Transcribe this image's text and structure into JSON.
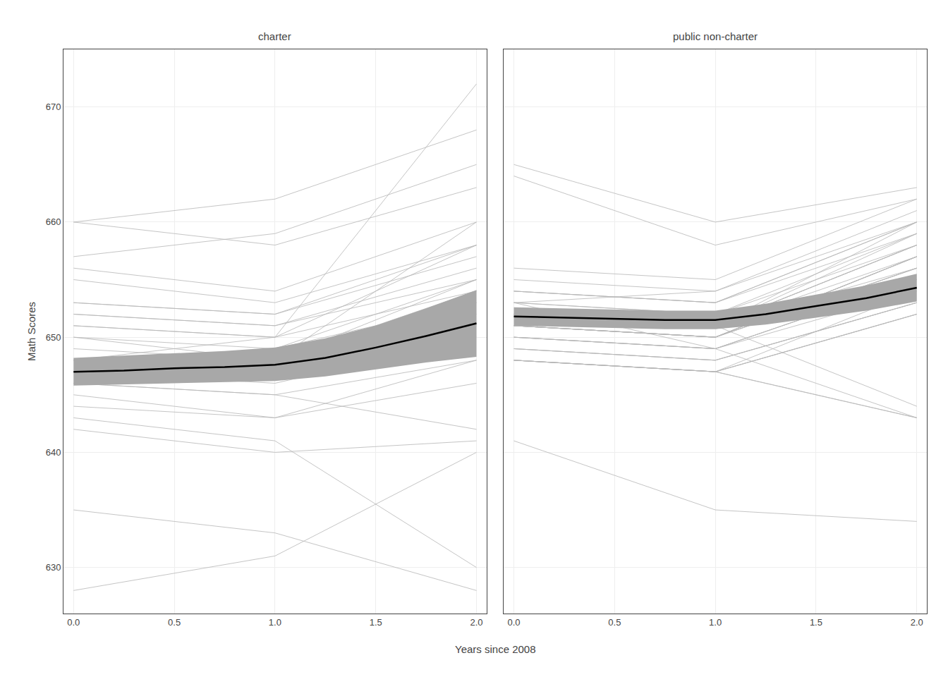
{
  "chart_data": [
    {
      "type": "line",
      "title": "charter",
      "xlabel": "Years since 2008",
      "ylabel": "Math Scores",
      "xlim": [
        -0.05,
        2.05
      ],
      "ylim": [
        626,
        675
      ],
      "xticks": [
        {
          "value": 0,
          "label": "0.0"
        },
        0.5,
        {
          "value": 1,
          "label": "1.0"
        },
        1.5,
        {
          "value": 2,
          "label": "2.0"
        }
      ],
      "yticks": [
        630,
        640,
        650,
        660,
        670
      ],
      "grid": true,
      "x": [
        0,
        1,
        2
      ],
      "series": [
        {
          "color": "#B8B8B8",
          "values": [
            647,
            648,
            655
          ]
        },
        {
          "color": "#B8B8B8",
          "values": [
            656,
            654,
            660
          ]
        },
        {
          "color": "#B8B8B8",
          "values": [
            651,
            650,
            658
          ]
        },
        {
          "color": "#B8B8B8",
          "values": [
            648,
            647,
            651
          ]
        },
        {
          "color": "#B8B8B8",
          "values": [
            650,
            648,
            660
          ]
        },
        {
          "color": "#B8B8B8",
          "values": [
            646,
            645,
            642
          ]
        },
        {
          "color": "#B8B8B8",
          "values": [
            655,
            653,
            658
          ]
        },
        {
          "color": "#B8B8B8",
          "values": [
            652,
            651,
            655
          ]
        },
        {
          "color": "#B8B8B8",
          "values": [
            647,
            646,
            650
          ]
        },
        {
          "color": "#B8B8B8",
          "values": [
            649,
            648,
            654
          ]
        },
        {
          "color": "#B8B8B8",
          "values": [
            644,
            643,
            648
          ]
        },
        {
          "color": "#B8B8B8",
          "values": [
            650,
            649,
            655
          ]
        },
        {
          "color": "#B8B8B8",
          "values": [
            653,
            652,
            657
          ]
        },
        {
          "color": "#B8B8B8",
          "values": [
            648,
            647,
            652
          ]
        },
        {
          "color": "#B8B8B8",
          "values": [
            657,
            659,
            665
          ]
        },
        {
          "color": "#B8B8B8",
          "values": [
            646,
            645,
            648
          ]
        },
        {
          "color": "#B8B8B8",
          "values": [
            660,
            658,
            663
          ]
        },
        {
          "color": "#B8B8B8",
          "values": [
            645,
            643,
            646
          ]
        },
        {
          "color": "#B8B8B8",
          "values": [
            652,
            651,
            656
          ]
        },
        {
          "color": "#B8B8B8",
          "values": [
            648,
            650,
            672
          ]
        },
        {
          "color": "#B8B8B8",
          "values": [
            635,
            633,
            628
          ]
        },
        {
          "color": "#B8B8B8",
          "values": [
            628,
            631,
            640
          ]
        },
        {
          "color": "#B8B8B8",
          "values": [
            642,
            640,
            641
          ]
        },
        {
          "color": "#B8B8B8",
          "values": [
            653,
            652,
            658
          ]
        },
        {
          "color": "#B8B8B8",
          "values": [
            651,
            650,
            654
          ]
        },
        {
          "color": "#B8B8B8",
          "values": [
            648,
            647,
            653
          ]
        },
        {
          "color": "#B8B8B8",
          "values": [
            646,
            647,
            651
          ]
        },
        {
          "color": "#B8B8B8",
          "values": [
            660,
            662,
            668
          ]
        },
        {
          "color": "#B8B8B8",
          "values": [
            647,
            649,
            653
          ]
        },
        {
          "color": "#B8B8B8",
          "values": [
            643,
            641,
            630
          ]
        },
        {
          "type": "band",
          "color": "#A8A8A8",
          "x": [
            0.0,
            0.25,
            0.5,
            0.75,
            1.0,
            1.25,
            1.5,
            1.75,
            2.0
          ],
          "low": [
            645.8,
            645.9,
            646.0,
            646.1,
            646.2,
            646.6,
            647.2,
            647.8,
            648.3
          ],
          "high": [
            648.2,
            648.4,
            648.6,
            648.8,
            649.1,
            649.9,
            651.0,
            652.5,
            654.1
          ]
        },
        {
          "color": "#000000",
          "x": [
            0.0,
            0.25,
            0.5,
            0.75,
            1.0,
            1.25,
            1.5,
            1.75,
            2.0
          ],
          "values": [
            647.0,
            647.1,
            647.3,
            647.4,
            647.6,
            648.2,
            649.1,
            650.1,
            651.2
          ]
        }
      ]
    },
    {
      "type": "line",
      "title": "public non-charter",
      "tick_labels": "x",
      "xlim": [
        -0.05,
        2.05
      ],
      "ylim": [
        626,
        675
      ],
      "xticks": [
        {
          "value": 0,
          "label": "0.0"
        },
        0.5,
        {
          "value": 1,
          "label": "1.0"
        },
        1.5,
        {
          "value": 2,
          "label": "2.0"
        }
      ],
      "yticks": [
        630,
        640,
        650,
        660,
        670
      ],
      "grid": true,
      "x": [
        0,
        1,
        2
      ],
      "series": [
        {
          "color": "#B8B8B8",
          "values": [
            652,
            651,
            658
          ]
        },
        {
          "color": "#B8B8B8",
          "values": [
            653,
            654,
            660
          ]
        },
        {
          "color": "#B8B8B8",
          "values": [
            651,
            650,
            656
          ]
        },
        {
          "color": "#B8B8B8",
          "values": [
            649,
            648,
            653
          ]
        },
        {
          "color": "#B8B8B8",
          "values": [
            655,
            654,
            661
          ]
        },
        {
          "color": "#B8B8B8",
          "values": [
            650,
            649,
            655
          ]
        },
        {
          "color": "#B8B8B8",
          "values": [
            648,
            647,
            652
          ]
        },
        {
          "color": "#B8B8B8",
          "values": [
            653,
            652,
            658
          ]
        },
        {
          "color": "#B8B8B8",
          "values": [
            651,
            650,
            657
          ]
        },
        {
          "color": "#B8B8B8",
          "values": [
            652,
            651,
            656
          ]
        },
        {
          "color": "#B8B8B8",
          "values": [
            654,
            653,
            659
          ]
        },
        {
          "color": "#B8B8B8",
          "values": [
            650,
            649,
            654
          ]
        },
        {
          "color": "#B8B8B8",
          "values": [
            648,
            647,
            652
          ]
        },
        {
          "color": "#B8B8B8",
          "values": [
            656,
            655,
            662
          ]
        },
        {
          "color": "#B8B8B8",
          "values": [
            651,
            650,
            657
          ]
        },
        {
          "color": "#B8B8B8",
          "values": [
            649,
            648,
            653
          ]
        },
        {
          "color": "#B8B8B8",
          "values": [
            652,
            651,
            658
          ]
        },
        {
          "color": "#B8B8B8",
          "values": [
            654,
            653,
            660
          ]
        },
        {
          "color": "#B8B8B8",
          "values": [
            648,
            647,
            652
          ]
        },
        {
          "color": "#B8B8B8",
          "values": [
            651,
            650,
            656
          ]
        },
        {
          "color": "#B8B8B8",
          "values": [
            641,
            635,
            634
          ]
        },
        {
          "color": "#B8B8B8",
          "values": [
            652,
            651,
            658
          ]
        },
        {
          "color": "#B8B8B8",
          "values": [
            664,
            658,
            662
          ]
        },
        {
          "color": "#B8B8B8",
          "values": [
            651,
            650,
            657
          ]
        },
        {
          "color": "#B8B8B8",
          "values": [
            653,
            652,
            659
          ]
        },
        {
          "color": "#B8B8B8",
          "values": [
            648,
            647,
            654
          ]
        },
        {
          "color": "#B8B8B8",
          "values": [
            650,
            649,
            655
          ]
        },
        {
          "color": "#B8B8B8",
          "values": [
            652,
            651,
            657
          ]
        },
        {
          "color": "#B8B8B8",
          "values": [
            654,
            653,
            660
          ]
        },
        {
          "color": "#B8B8B8",
          "values": [
            651,
            650,
            656
          ]
        },
        {
          "color": "#B8B8B8",
          "values": [
            649,
            648,
            653
          ]
        },
        {
          "color": "#B8B8B8",
          "values": [
            652,
            651,
            659
          ]
        },
        {
          "color": "#B8B8B8",
          "values": [
            651,
            650,
            657
          ]
        },
        {
          "color": "#B8B8B8",
          "values": [
            665,
            660,
            663
          ]
        },
        {
          "color": "#B8B8B8",
          "values": [
            653,
            649,
            643
          ]
        },
        {
          "color": "#B8B8B8",
          "values": [
            648,
            647,
            643
          ]
        },
        {
          "color": "#B8B8B8",
          "values": [
            652,
            651,
            660
          ]
        },
        {
          "color": "#B8B8B8",
          "values": [
            650,
            649,
            655
          ]
        },
        {
          "color": "#B8B8B8",
          "values": [
            648,
            647,
            643
          ]
        },
        {
          "color": "#B8B8B8",
          "values": [
            652,
            651,
            644
          ]
        },
        {
          "type": "band",
          "color": "#A8A8A8",
          "x": [
            0.0,
            0.25,
            0.5,
            0.75,
            1.0,
            1.25,
            1.5,
            1.75,
            2.0
          ],
          "low": [
            651.0,
            650.9,
            650.8,
            650.7,
            650.7,
            651.1,
            651.7,
            652.3,
            653.1
          ],
          "high": [
            652.6,
            652.5,
            652.4,
            652.3,
            652.3,
            652.9,
            653.7,
            654.5,
            655.5
          ]
        },
        {
          "color": "#000000",
          "x": [
            0.0,
            0.25,
            0.5,
            0.75,
            1.0,
            1.25,
            1.5,
            1.75,
            2.0
          ],
          "values": [
            651.8,
            651.7,
            651.6,
            651.5,
            651.5,
            652.0,
            652.7,
            653.4,
            654.3
          ]
        }
      ]
    }
  ]
}
